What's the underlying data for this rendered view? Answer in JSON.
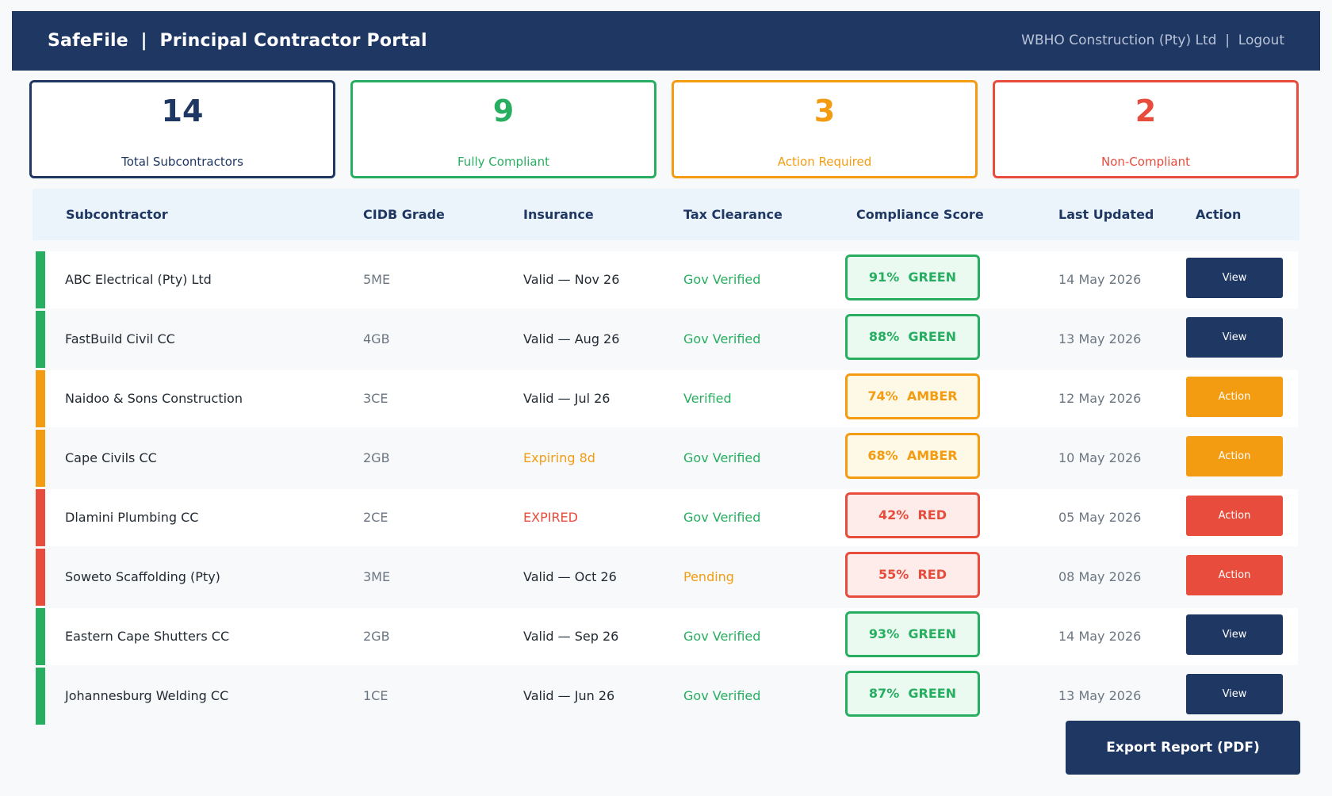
{
  "header": {
    "title": "SafeFile  |  Principal Contractor Portal",
    "company": "WBHO Construction (Pty) Ltd",
    "separator": "  |  ",
    "logout": "Logout"
  },
  "summary": [
    {
      "value": "14",
      "label": "Total Subcontractors",
      "color": "#1f3763"
    },
    {
      "value": "9",
      "label": "Fully Compliant",
      "color": "#27ae60"
    },
    {
      "value": "3",
      "label": "Action Required",
      "color": "#f39c12"
    },
    {
      "value": "2",
      "label": "Non-Compliant",
      "color": "#e74c3c"
    }
  ],
  "table": {
    "columns": [
      "Subcontractor",
      "CIDB Grade",
      "Insurance",
      "Tax Clearance",
      "Compliance Score",
      "Last Updated",
      "Action"
    ],
    "rows": [
      {
        "name": "ABC Electrical (Pty) Ltd",
        "grade": "5ME",
        "insurance": "Valid — Nov 26",
        "insurance_status": "ok",
        "tax": "Gov Verified",
        "tax_status": "ok",
        "score": "91%  GREEN",
        "rating": "green",
        "updated": "14 May 2026",
        "action": "View"
      },
      {
        "name": "FastBuild Civil CC",
        "grade": "4GB",
        "insurance": "Valid — Aug 26",
        "insurance_status": "ok",
        "tax": "Gov Verified",
        "tax_status": "ok",
        "score": "88%  GREEN",
        "rating": "green",
        "updated": "13 May 2026",
        "action": "View"
      },
      {
        "name": "Naidoo & Sons Construction",
        "grade": "3CE",
        "insurance": "Valid — Jul 26",
        "insurance_status": "ok",
        "tax": "Verified",
        "tax_status": "ok",
        "score": "74%  AMBER",
        "rating": "amber",
        "updated": "12 May 2026",
        "action": "Action"
      },
      {
        "name": "Cape Civils CC",
        "grade": "2GB",
        "insurance": "Expiring 8d",
        "insurance_status": "warning",
        "tax": "Gov Verified",
        "tax_status": "ok",
        "score": "68%  AMBER",
        "rating": "amber",
        "updated": "10 May 2026",
        "action": "Action"
      },
      {
        "name": "Dlamini Plumbing CC",
        "grade": "2CE",
        "insurance": "EXPIRED",
        "insurance_status": "error",
        "tax": "Gov Verified",
        "tax_status": "ok",
        "score": "42%  RED",
        "rating": "red",
        "updated": "05 May 2026",
        "action": "Action"
      },
      {
        "name": "Soweto Scaffolding (Pty)",
        "grade": "3ME",
        "insurance": "Valid — Oct 26",
        "insurance_status": "ok",
        "tax": "Pending",
        "tax_status": "warning",
        "score": "55%  RED",
        "rating": "red",
        "updated": "08 May 2026",
        "action": "Action"
      },
      {
        "name": "Eastern Cape Shutters CC",
        "grade": "2GB",
        "insurance": "Valid — Sep 26",
        "insurance_status": "ok",
        "tax": "Gov Verified",
        "tax_status": "ok",
        "score": "93%  GREEN",
        "rating": "green",
        "updated": "14 May 2026",
        "action": "View"
      },
      {
        "name": "Johannesburg Welding CC",
        "grade": "1CE",
        "insurance": "Valid — Jun 26",
        "insurance_status": "ok",
        "tax": "Gov Verified",
        "tax_status": "ok",
        "score": "87%  GREEN",
        "rating": "green",
        "updated": "13 May 2026",
        "action": "View"
      }
    ]
  },
  "export_button": "Export Report (PDF)",
  "colors": {
    "navy": "#1f3763",
    "green": "#27ae60",
    "green_bg": "#eafaf1",
    "amber": "#f39c12",
    "amber_bg": "#fef8e6",
    "red": "#e74c3c",
    "red_bg": "#fdecea",
    "text_dark": "#222a33",
    "text_muted": "#6b7682"
  }
}
